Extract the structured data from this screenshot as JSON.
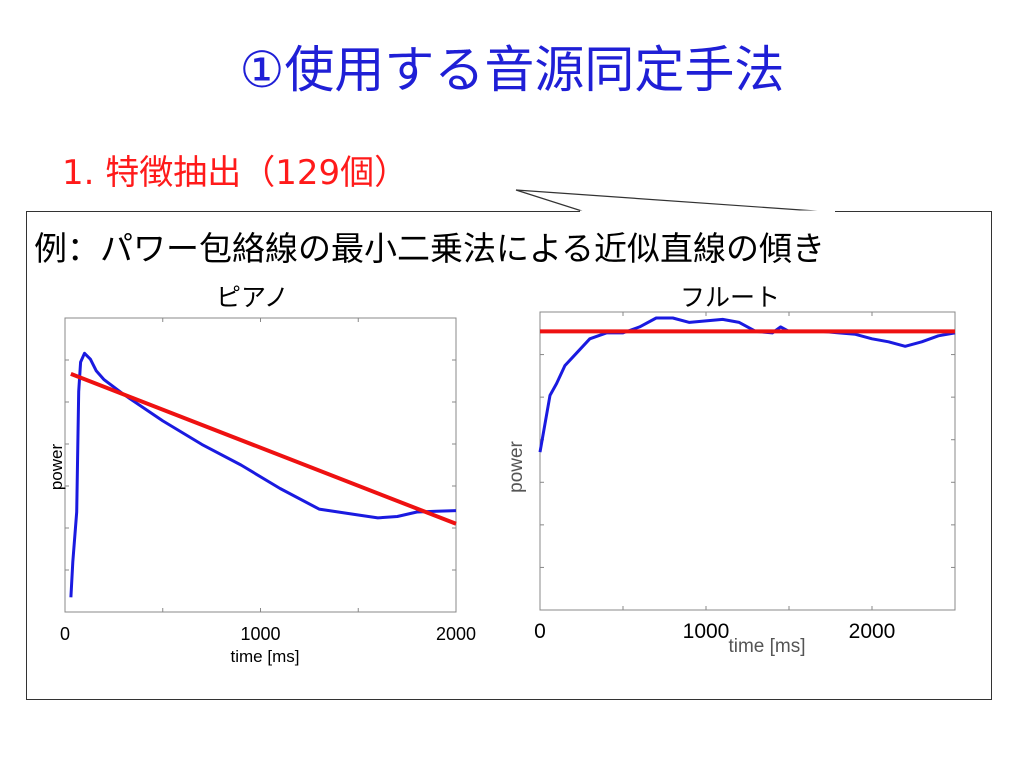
{
  "slide_title": "①使用する音源同定手法",
  "bullet": "1. 特徴抽出（129個）",
  "example_text": "例：パワー包絡線の最小二乗法による近似直線の傾き",
  "colors": {
    "title": "#1f1fd6",
    "bullet": "#ff1a1a",
    "signal": "#1a1ae0",
    "fit_line": "#ee1111"
  },
  "chart_data": [
    {
      "type": "line",
      "title": "ピアノ",
      "xlabel": "time [ms]",
      "ylabel": "power",
      "xlim": [
        0,
        2000
      ],
      "x_ticks": [
        "0",
        "1000",
        "2000"
      ],
      "series": [
        {
          "x": [
            30,
            40,
            60,
            70,
            80,
            100,
            130,
            160,
            200,
            300,
            500,
            700,
            900,
            1100,
            1300,
            1500,
            1600,
            1700,
            1800,
            1900,
            2000
          ],
          "y": [
            0.05,
            0.17,
            0.34,
            0.75,
            0.85,
            0.88,
            0.86,
            0.82,
            0.79,
            0.74,
            0.65,
            0.57,
            0.5,
            0.42,
            0.35,
            0.33,
            0.32,
            0.325,
            0.34,
            0.343,
            0.345
          ]
        },
        {
          "x": [
            30,
            2000
          ],
          "y": [
            0.81,
            0.3
          ]
        }
      ]
    },
    {
      "type": "line",
      "title": "フルート",
      "xlabel": "time [ms]",
      "ylabel": "power",
      "xlim": [
        0,
        2500
      ],
      "x_ticks": [
        "0",
        "1000",
        "2000"
      ],
      "series": [
        {
          "x": [
            0,
            60,
            100,
            150,
            200,
            300,
            400,
            500,
            600,
            700,
            800,
            900,
            1000,
            1100,
            1200,
            1300,
            1400,
            1450,
            1500,
            1550,
            1600,
            1700,
            1800,
            1900,
            2000,
            2100,
            2200,
            2300,
            2400,
            2500
          ],
          "y": [
            0.53,
            0.72,
            0.76,
            0.82,
            0.85,
            0.91,
            0.93,
            0.93,
            0.95,
            0.98,
            0.98,
            0.965,
            0.97,
            0.975,
            0.965,
            0.935,
            0.93,
            0.95,
            0.935,
            0.935,
            0.935,
            0.935,
            0.93,
            0.925,
            0.91,
            0.9,
            0.885,
            0.9,
            0.92,
            0.93
          ]
        },
        {
          "x": [
            0,
            2500
          ],
          "y": [
            0.935,
            0.935
          ]
        }
      ]
    }
  ]
}
